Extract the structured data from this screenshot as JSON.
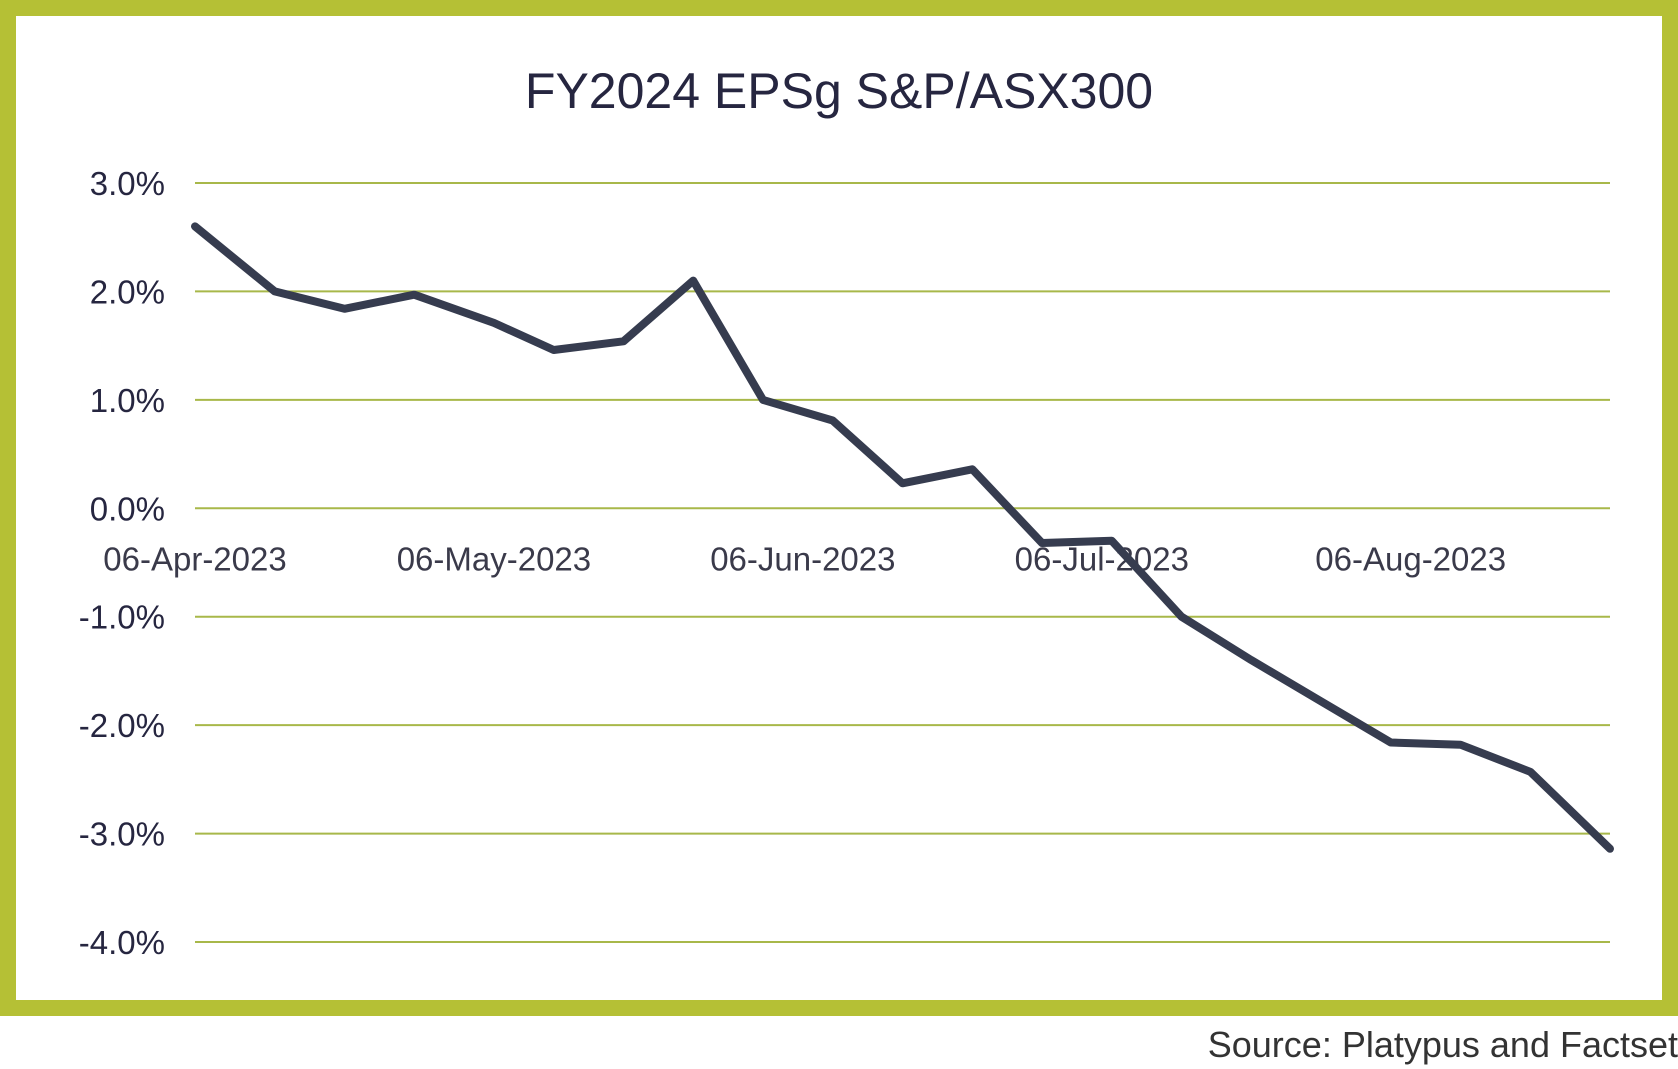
{
  "chart_data": {
    "type": "line",
    "title": "FY2024 EPSg S&P/ASX300",
    "xlabel": "",
    "ylabel": "",
    "ylim": [
      -4.0,
      3.0
    ],
    "yticks": [
      3.0,
      2.0,
      1.0,
      0.0,
      -1.0,
      -2.0,
      -3.0,
      -4.0
    ],
    "ytick_labels": [
      "3.0%",
      "2.0%",
      "1.0%",
      "0.0%",
      "-1.0%",
      "-2.0%",
      "-3.0%",
      "-4.0%"
    ],
    "xlim": [
      "2023-04-06",
      "2023-08-26"
    ],
    "xticks": [
      "2023-04-06",
      "2023-05-06",
      "2023-06-06",
      "2023-07-06",
      "2023-08-06"
    ],
    "xtick_labels": [
      "06-Apr-2023",
      "06-May-2023",
      "06-Jun-2023",
      "06-Jul-2023",
      "06-Aug-2023"
    ],
    "grid": true,
    "legend": "none",
    "line_color": "#363c4f",
    "grid_color": "#a8b84a",
    "series": [
      {
        "x": [
          "2023-04-06",
          "2023-04-14",
          "2023-04-21",
          "2023-04-28",
          "2023-05-06",
          "2023-05-12",
          "2023-05-19",
          "2023-05-26",
          "2023-06-02",
          "2023-06-09",
          "2023-06-16",
          "2023-06-23",
          "2023-06-30",
          "2023-07-07",
          "2023-07-14",
          "2023-07-21",
          "2023-07-28",
          "2023-08-04",
          "2023-08-11",
          "2023-08-18",
          "2023-08-26"
        ],
        "y": [
          2.6,
          2.0,
          1.84,
          1.97,
          1.71,
          1.46,
          1.54,
          2.1,
          1.0,
          0.81,
          0.23,
          0.36,
          -0.32,
          -0.3,
          -1.0,
          -1.4,
          -1.78,
          -2.16,
          -2.18,
          -2.43,
          -3.14
        ]
      }
    ]
  },
  "source": "Source: Platypus and Factset",
  "frame_color": "#b5c035"
}
